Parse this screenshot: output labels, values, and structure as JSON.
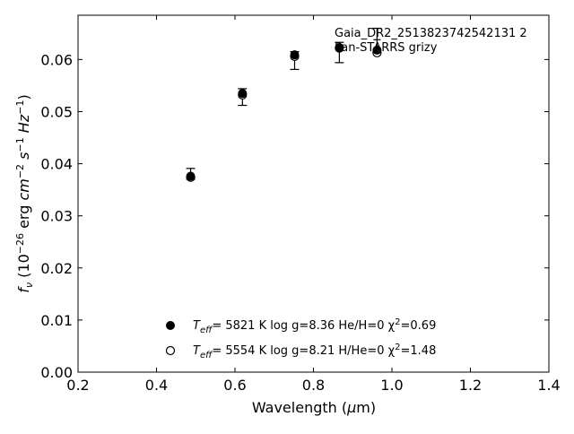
{
  "chart_data": {
    "type": "scatter",
    "xlabel_prefix": "Wavelength (",
    "xlabel_symbol": "μ",
    "xlabel_suffix": "m)",
    "ylabel": "f_ν (10^-26 erg cm^-2 s^-1 Hz^-1)",
    "xlim": [
      0.2,
      1.4
    ],
    "ylim": [
      0.0,
      0.0685
    ],
    "xticks": [
      0.2,
      0.4,
      0.6,
      0.8,
      1.0,
      1.2,
      1.4
    ],
    "xtick_labels": [
      "0.2",
      "0.4",
      "0.6",
      "0.8",
      "1.0",
      "1.2",
      "1.4"
    ],
    "yticks": [
      0.0,
      0.01,
      0.02,
      0.03,
      0.04,
      0.05,
      0.06
    ],
    "ytick_labels": [
      "0.00",
      "0.01",
      "0.02",
      "0.03",
      "0.04",
      "0.05",
      "0.06"
    ],
    "annotations": [
      "Gaia_DR2_2513823742542131 2",
      "Pan-STARRS grizy"
    ],
    "observed": {
      "x": [
        0.487,
        0.619,
        0.752,
        0.866,
        0.962
      ],
      "y": [
        0.0378,
        0.0532,
        0.0604,
        0.0618,
        0.0638
      ],
      "yerr_low": [
        0.0008,
        0.002,
        0.0023,
        0.0024,
        0.0025
      ],
      "yerr_high": [
        0.0013,
        0.0012,
        0.0011,
        0.0015,
        0.0022
      ]
    },
    "series": [
      {
        "marker": "filled-circle",
        "label_T": "T",
        "label_eff": "eff",
        "label_text": "=  5821 K  log g=8.36  He/H=0  χ",
        "label_chi_sup": "2",
        "label_tail": "=0.69",
        "x": [
          0.487,
          0.619,
          0.752,
          0.866,
          0.962
        ],
        "y": [
          0.0376,
          0.0535,
          0.0609,
          0.0623,
          0.0618
        ]
      },
      {
        "marker": "open-circle",
        "label_T": "T",
        "label_eff": "eff",
        "label_text": "=  5554 K  log g=8.21  H/He=0  χ",
        "label_chi_sup": "2",
        "label_tail": "=1.48",
        "x": [
          0.487,
          0.619,
          0.752,
          0.866,
          0.962
        ],
        "y": [
          0.0374,
          0.0532,
          0.0606,
          0.0622,
          0.0613
        ]
      }
    ],
    "legend_position": "lower-center",
    "grid": false
  }
}
